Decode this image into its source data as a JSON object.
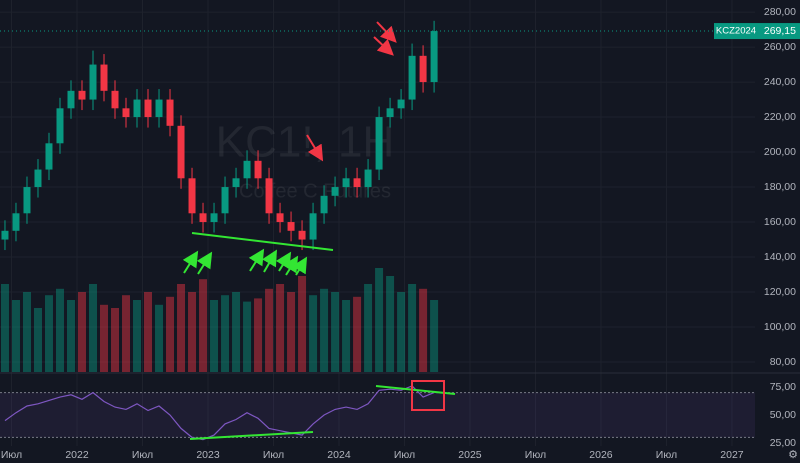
{
  "chart_data": {
    "type": "candlestick",
    "title": "KC1!, 1Н",
    "subtitle": "Coffee C Futures",
    "x": [
      2021.45,
      2021.534,
      2021.618,
      2021.702,
      2021.786,
      2021.87,
      2021.954,
      2022.038,
      2022.122,
      2022.206,
      2022.29,
      2022.374,
      2022.458,
      2022.542,
      2022.626,
      2022.71,
      2022.794,
      2022.878,
      2022.962,
      2023.046,
      2023.13,
      2023.214,
      2023.298,
      2023.382,
      2023.466,
      2023.55,
      2023.634,
      2023.718,
      2023.802,
      2023.886,
      2023.97,
      2024.054,
      2024.138,
      2024.222,
      2024.306,
      2024.39,
      2024.474,
      2024.558,
      2024.642,
      2024.726
    ],
    "open": [
      150,
      155,
      165,
      180,
      190,
      205,
      225,
      235,
      230,
      250,
      235,
      225,
      220,
      230,
      220,
      230,
      215,
      185,
      165,
      160,
      165,
      180,
      185,
      195,
      185,
      165,
      160,
      155,
      150,
      165,
      175,
      180,
      185,
      180,
      190,
      220,
      225,
      230,
      255,
      240
    ],
    "high": [
      161,
      171,
      186,
      196,
      211,
      231,
      241,
      241,
      258,
      256,
      241,
      231,
      236,
      236,
      236,
      236,
      221,
      191,
      171,
      171,
      186,
      191,
      201,
      201,
      191,
      171,
      166,
      161,
      171,
      181,
      186,
      191,
      191,
      196,
      226,
      231,
      236,
      262,
      261,
      275
    ],
    "low": [
      144,
      149,
      159,
      174,
      184,
      199,
      219,
      224,
      224,
      229,
      219,
      214,
      214,
      214,
      214,
      209,
      179,
      159,
      154,
      154,
      159,
      174,
      179,
      179,
      159,
      154,
      149,
      144,
      144,
      159,
      169,
      174,
      174,
      174,
      184,
      214,
      219,
      224,
      234,
      234
    ],
    "close": [
      155,
      165,
      180,
      190,
      205,
      225,
      235,
      230,
      250,
      235,
      225,
      220,
      230,
      220,
      230,
      215,
      185,
      165,
      160,
      165,
      180,
      185,
      195,
      185,
      165,
      160,
      155,
      150,
      165,
      175,
      180,
      185,
      180,
      190,
      220,
      225,
      230,
      255,
      240,
      269.15
    ],
    "up_color": "#089981",
    "down_color": "#f23645",
    "volume": [
      55,
      45,
      50,
      40,
      48,
      52,
      45,
      50,
      55,
      42,
      40,
      48,
      45,
      50,
      42,
      47,
      55,
      50,
      58,
      45,
      48,
      50,
      44,
      46,
      52,
      55,
      50,
      60,
      48,
      52,
      50,
      45,
      47,
      55,
      65,
      60,
      50,
      55,
      52,
      45
    ],
    "rsi": {
      "values": [
        45,
        52,
        58,
        60,
        63,
        66,
        68,
        64,
        70,
        62,
        57,
        55,
        60,
        54,
        58,
        50,
        38,
        30,
        28,
        32,
        42,
        46,
        52,
        47,
        38,
        36,
        34,
        32,
        42,
        50,
        55,
        57,
        55,
        60,
        72,
        73,
        72,
        76,
        66,
        70
      ],
      "color": "#7e57c2",
      "ylim": [
        22.3,
        84.8
      ],
      "yticks": [
        {
          "value": 75,
          "label": "75,00"
        },
        {
          "value": 50,
          "label": "50,00"
        },
        {
          "value": 25,
          "label": "25,00"
        }
      ],
      "bands": [
        70,
        30
      ]
    },
    "xlim": [
      2021.412,
      2027.176
    ],
    "xticks": [
      {
        "value": 2021.5,
        "label": "Июл"
      },
      {
        "value": 2022,
        "label": "2022"
      },
      {
        "value": 2022.5,
        "label": "Июл"
      },
      {
        "value": 2023,
        "label": "2023"
      },
      {
        "value": 2023.5,
        "label": "Июл"
      },
      {
        "value": 2024,
        "label": "2024"
      },
      {
        "value": 2024.5,
        "label": "Июл"
      },
      {
        "value": 2025,
        "label": "2025"
      },
      {
        "value": 2025.5,
        "label": "Июл"
      },
      {
        "value": 2026,
        "label": "2026"
      },
      {
        "value": 2026.5,
        "label": "Июл"
      },
      {
        "value": 2027,
        "label": "2027"
      }
    ],
    "ylim": [
      74.3,
      286.9
    ],
    "yticks": [
      {
        "value": 280,
        "label": "280,00"
      },
      {
        "value": 260,
        "label": "260,00"
      },
      {
        "value": 240,
        "label": "240,00"
      },
      {
        "value": 220,
        "label": "220,00"
      },
      {
        "value": 200,
        "label": "200,00"
      },
      {
        "value": 180,
        "label": "180,00"
      },
      {
        "value": 160,
        "label": "160,00"
      },
      {
        "value": 140,
        "label": "140,00"
      },
      {
        "value": 120,
        "label": "120,00"
      },
      {
        "value": 100,
        "label": "100,00"
      },
      {
        "value": 80,
        "label": "80,00"
      }
    ],
    "price_label": {
      "symbol": "KCZ2024",
      "value": 269.15,
      "label": "269,15"
    }
  }
}
